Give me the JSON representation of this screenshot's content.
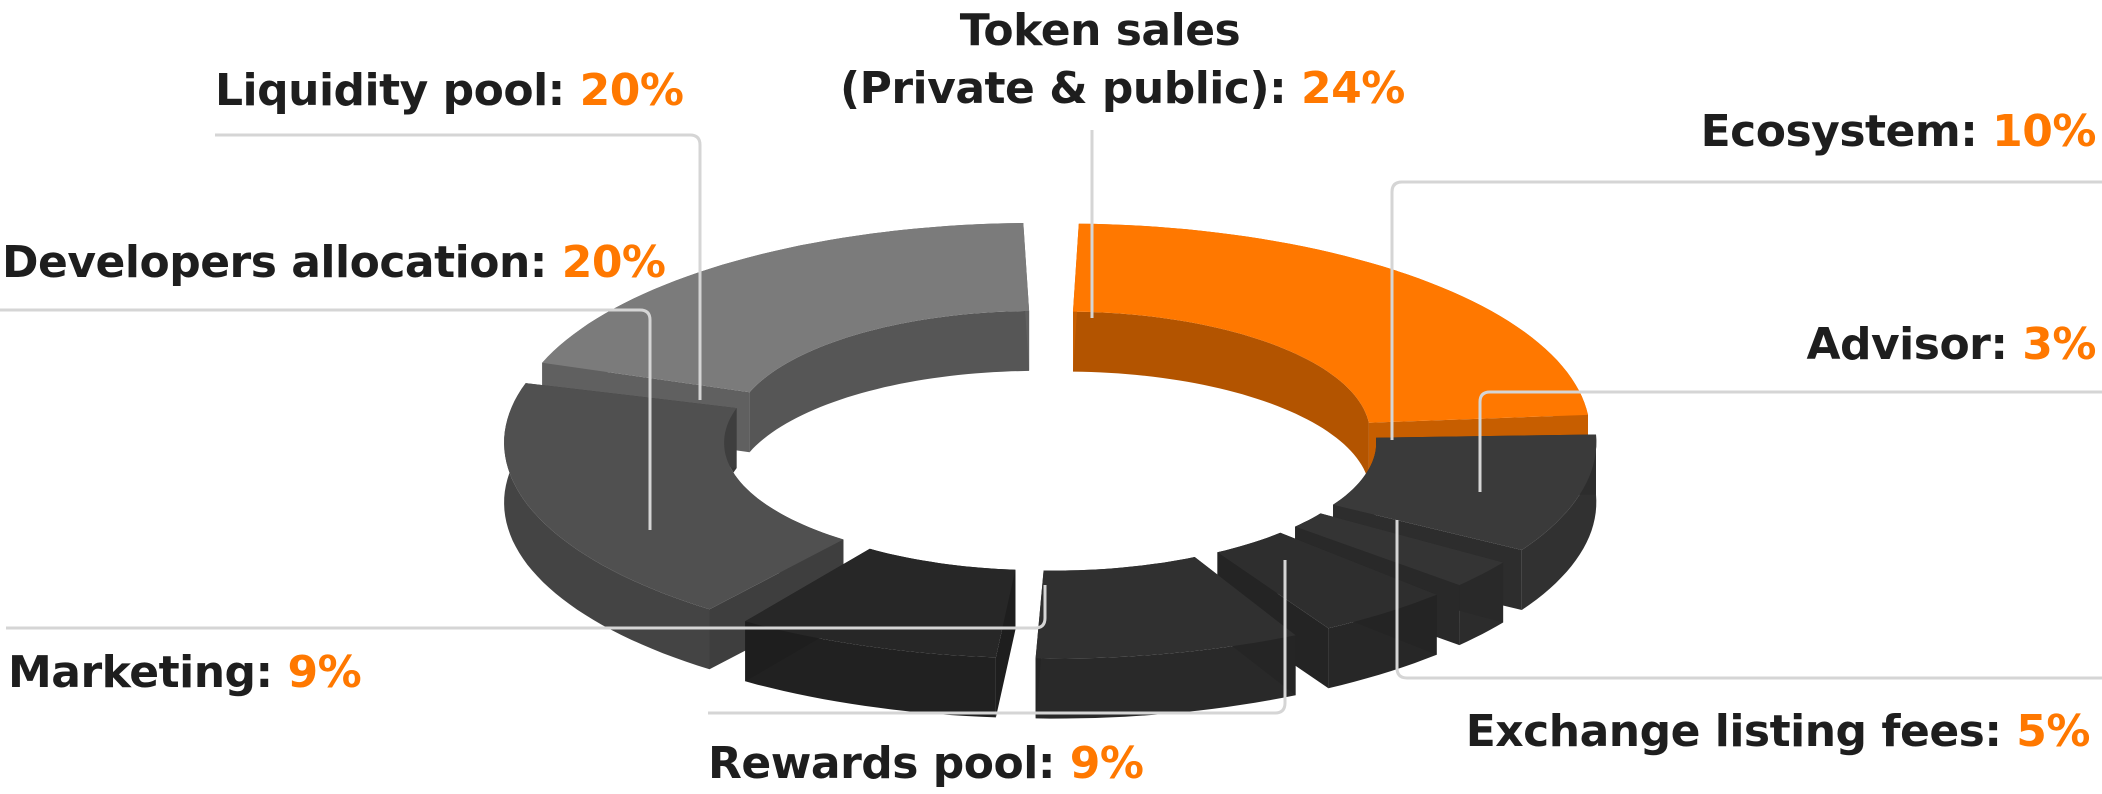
{
  "chart_data": {
    "type": "pie",
    "title": "",
    "series": [
      {
        "label": "Token sales (Private & public)",
        "label_line1": "Token sales",
        "label_line2": "(Private & public)",
        "value": 24,
        "display": "24%",
        "color": "#ff7800"
      },
      {
        "label": "Ecosystem",
        "value": 10,
        "display": "10%",
        "color": "#3a3a3a"
      },
      {
        "label": "Advisor",
        "value": 3,
        "display": "3%",
        "color": "#343434"
      },
      {
        "label": "Exchange listing fees",
        "value": 5,
        "display": "5%",
        "color": "#2e2e2e"
      },
      {
        "label": "Rewards pool",
        "value": 9,
        "display": "9%",
        "color": "#303030"
      },
      {
        "label": "Marketing",
        "value": 9,
        "display": "9%",
        "color": "#272727"
      },
      {
        "label": "Developers allocation",
        "value": 20,
        "display": "20%",
        "color": "#505050"
      },
      {
        "label": "Liquidity pool",
        "value": 20,
        "display": "20%",
        "color": "#7b7b7b"
      }
    ],
    "accent_color": "#ff7800",
    "text_color": "#1e1e1e",
    "leader_color": "#d5d5d5",
    "legend": "callouts"
  }
}
